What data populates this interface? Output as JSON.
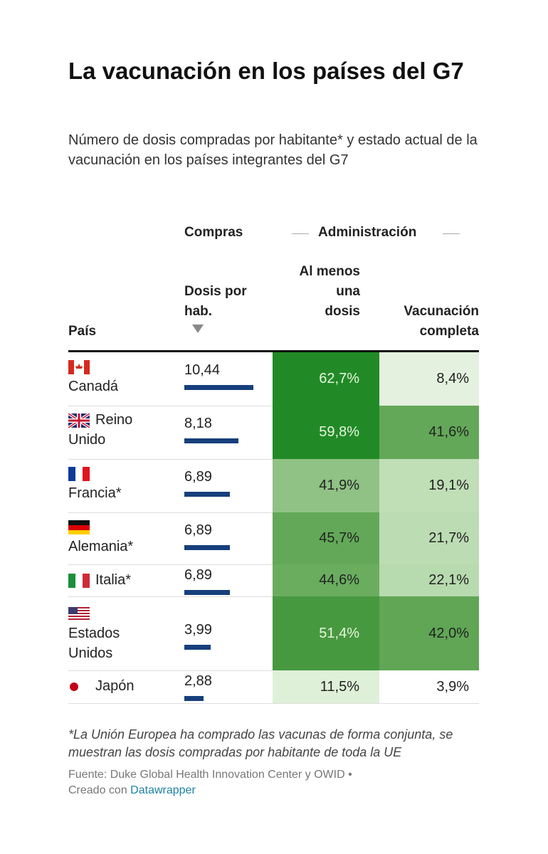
{
  "title": "La vacunación en los países del G7",
  "subtitle": "Número de dosis compradas por habitante* y estado actual de la vacunación en los países integrantes del G7",
  "chart_data": {
    "type": "table",
    "groups": {
      "compras": "Compras",
      "administracion": "Administración"
    },
    "columns": {
      "pais": "País",
      "dosis": "Dosis por hab.",
      "al_menos": "Al menos una dosis",
      "completa": "Vacunación completa"
    },
    "sorted_by": "dosis",
    "bar_max": 10.44,
    "bar_color": "#163f7c",
    "rows": [
      {
        "pais": "Canadá",
        "flag": "canada-flag",
        "dosis": "10,44",
        "dosis_value": 10.44,
        "al_menos": "62,7%",
        "al_color": "#218a26",
        "al_text": "#e8f5e0",
        "completa": "8,4%",
        "comp_color": "#e4f1df",
        "comp_text": "#222"
      },
      {
        "pais": "Reino Unido",
        "flag": "uk-flag",
        "dosis": "8,18",
        "dosis_value": 8.18,
        "al_menos": "59,8%",
        "al_color": "#218a26",
        "al_text": "#e8f5e0",
        "completa": "41,6%",
        "comp_color": "#63a858",
        "comp_text": "#222"
      },
      {
        "pais": "Francia*",
        "flag": "france-flag",
        "dosis": "6,89",
        "dosis_value": 6.89,
        "al_menos": "41,9%",
        "al_color": "#8fc284",
        "al_text": "#222",
        "completa": "19,1%",
        "comp_color": "#c0dfb7",
        "comp_text": "#222"
      },
      {
        "pais": "Alemania*",
        "flag": "germany-flag",
        "dosis": "6,89",
        "dosis_value": 6.89,
        "al_menos": "45,7%",
        "al_color": "#63a858",
        "al_text": "#222",
        "completa": "21,7%",
        "comp_color": "#bcdcb3",
        "comp_text": "#222"
      },
      {
        "pais": "Italia*",
        "flag": "italy-flag",
        "dosis": "6,89",
        "dosis_value": 6.89,
        "al_menos": "44,6%",
        "al_color": "#6aad5f",
        "al_text": "#222",
        "completa": "22,1%",
        "comp_color": "#b8daaf",
        "comp_text": "#222"
      },
      {
        "pais": "Estados Unidos",
        "flag": "usa-flag",
        "dosis": "3,99",
        "dosis_value": 3.99,
        "al_menos": "51,4%",
        "al_color": "#47993f",
        "al_text": "#e8f5e0",
        "completa": "42,0%",
        "comp_color": "#60a655",
        "comp_text": "#222"
      },
      {
        "pais": "Japón",
        "flag": "japan-flag",
        "dosis": "2,88",
        "dosis_value": 2.88,
        "al_menos": "11,5%",
        "al_color": "#dff0d9",
        "al_text": "#222",
        "completa": "3,9%",
        "comp_color": "#ffffff",
        "comp_text": "#222"
      }
    ]
  },
  "footnote": "*La Unión Europea ha comprado las vacunas de forma conjunta, se muestran las dosis compradas por habitante de toda la UE",
  "source": "Fuente: Duke Global Health Innovation Center y OWID •",
  "credit_prefix": "Creado con",
  "credit_link": "Datawrapper"
}
